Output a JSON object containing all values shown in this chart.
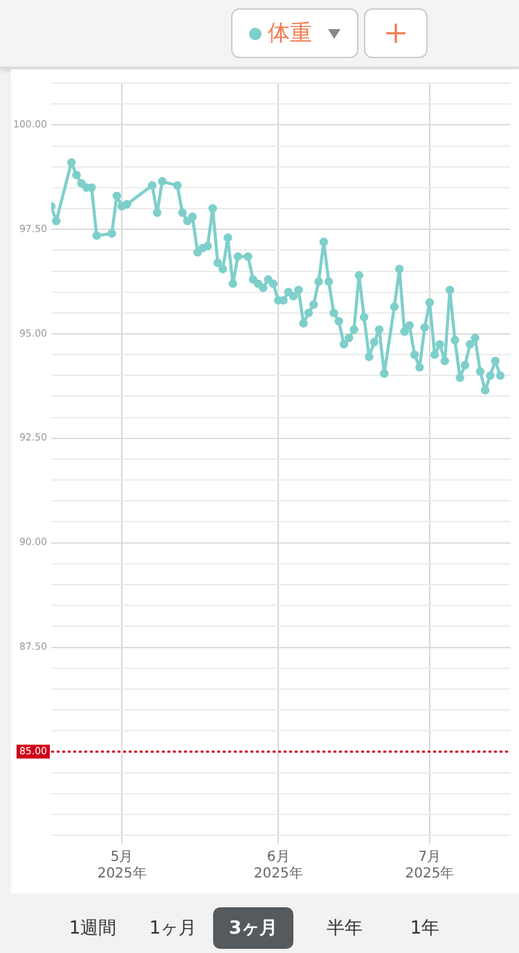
{
  "chart_data": {
    "type": "line",
    "x": [
      "2025-04-17",
      "2025-04-18",
      "2025-04-21",
      "2025-04-22",
      "2025-04-23",
      "2025-04-24",
      "2025-04-25",
      "2025-04-26",
      "2025-04-29",
      "2025-04-30",
      "2025-05-01",
      "2025-05-02",
      "2025-05-07",
      "2025-05-08",
      "2025-05-09",
      "2025-05-12",
      "2025-05-13",
      "2025-05-14",
      "2025-05-15",
      "2025-05-16",
      "2025-05-17",
      "2025-05-18",
      "2025-05-19",
      "2025-05-20",
      "2025-05-21",
      "2025-05-22",
      "2025-05-23",
      "2025-05-24",
      "2025-05-26",
      "2025-05-27",
      "2025-05-28",
      "2025-05-29",
      "2025-05-30",
      "2025-05-31",
      "2025-06-01",
      "2025-06-02",
      "2025-06-03",
      "2025-06-04",
      "2025-06-05",
      "2025-06-06",
      "2025-06-07",
      "2025-06-08",
      "2025-06-09",
      "2025-06-10",
      "2025-06-11",
      "2025-06-12",
      "2025-06-13",
      "2025-06-14",
      "2025-06-15",
      "2025-06-16",
      "2025-06-17",
      "2025-06-18",
      "2025-06-19",
      "2025-06-20",
      "2025-06-21",
      "2025-06-22",
      "2025-06-24",
      "2025-06-25",
      "2025-06-26",
      "2025-06-27",
      "2025-06-28",
      "2025-06-29",
      "2025-06-30",
      "2025-07-01",
      "2025-07-02",
      "2025-07-03",
      "2025-07-04",
      "2025-07-05",
      "2025-07-06",
      "2025-07-07",
      "2025-07-08",
      "2025-07-09",
      "2025-07-10",
      "2025-07-11",
      "2025-07-12",
      "2025-07-13",
      "2025-07-14",
      "2025-07-15"
    ],
    "series": [
      {
        "name": "体重",
        "color": "#7ecfcb",
        "values": [
          98.05,
          97.7,
          99.1,
          98.8,
          98.6,
          98.5,
          98.5,
          97.35,
          97.4,
          98.3,
          98.05,
          98.1,
          98.55,
          97.9,
          98.65,
          98.55,
          97.9,
          97.7,
          97.8,
          96.95,
          97.05,
          97.1,
          98.0,
          96.7,
          96.55,
          97.3,
          96.2,
          96.85,
          96.85,
          96.3,
          96.2,
          96.1,
          96.3,
          96.2,
          95.8,
          95.8,
          96.0,
          95.9,
          96.05,
          95.25,
          95.5,
          95.7,
          96.25,
          97.2,
          96.25,
          95.5,
          95.3,
          94.75,
          94.9,
          95.1,
          96.4,
          95.4,
          94.45,
          94.8,
          95.1,
          94.05,
          95.65,
          96.55,
          95.05,
          95.2,
          94.5,
          94.2,
          95.15,
          95.75,
          94.5,
          94.75,
          94.35,
          96.05,
          94.85,
          93.95,
          94.25,
          94.75,
          94.9,
          94.1,
          93.65,
          94.0,
          94.35,
          94.0
        ]
      }
    ],
    "xlim": [
      "2025-04-17",
      "2025-07-17"
    ],
    "xticks": [
      {
        "value": "2025-05-01",
        "label": "5月\n2025年"
      },
      {
        "value": "2025-06-01",
        "label": "6月\n2025年"
      },
      {
        "value": "2025-07-01",
        "label": "7月\n2025年"
      }
    ],
    "ylim": [
      83,
      101
    ],
    "yticks": [
      {
        "value": 83,
        "label": null
      },
      {
        "value": 83.5,
        "label": null
      },
      {
        "value": 84,
        "label": null
      },
      {
        "value": 84.5,
        "label": null
      },
      {
        "value": 85,
        "label": null
      },
      {
        "value": 85.5,
        "label": null
      },
      {
        "value": 86,
        "label": null
      },
      {
        "value": 86.5,
        "label": null
      },
      {
        "value": 87,
        "label": null
      },
      {
        "value": 87.5,
        "label": "87.50"
      },
      {
        "value": 88,
        "label": null
      },
      {
        "value": 88.5,
        "label": null
      },
      {
        "value": 89,
        "label": null
      },
      {
        "value": 89.5,
        "label": null
      },
      {
        "value": 90,
        "label": "90.00"
      },
      {
        "value": 90.5,
        "label": null
      },
      {
        "value": 91,
        "label": null
      },
      {
        "value": 91.5,
        "label": null
      },
      {
        "value": 92,
        "label": null
      },
      {
        "value": 92.5,
        "label": "92.50"
      },
      {
        "value": 93,
        "label": null
      },
      {
        "value": 93.5,
        "label": null
      },
      {
        "value": 94,
        "label": null
      },
      {
        "value": 94.5,
        "label": null
      },
      {
        "value": 95,
        "label": "95.00"
      },
      {
        "value": 95.5,
        "label": null
      },
      {
        "value": 96,
        "label": null
      },
      {
        "value": 96.5,
        "label": null
      },
      {
        "value": 97,
        "label": null
      },
      {
        "value": 97.5,
        "label": "97.50"
      },
      {
        "value": 98,
        "label": null
      },
      {
        "value": 98.5,
        "label": null
      },
      {
        "value": 99,
        "label": null
      },
      {
        "value": 99.5,
        "label": null
      },
      {
        "value": 100,
        "label": "100.00"
      },
      {
        "value": 100.5,
        "label": null
      },
      {
        "value": 101,
        "label": null
      }
    ],
    "ref_lines": [
      {
        "axis": "y",
        "value": 85,
        "label": "85.00",
        "color": "#d0021b",
        "line_style": "dotted"
      }
    ],
    "grid": true,
    "legend": "top",
    "marker": "circle",
    "line_style": "solid",
    "annotations": [
      "1週間",
      "1ヶ月",
      "3ヶ月",
      "半年",
      "1年"
    ]
  }
}
